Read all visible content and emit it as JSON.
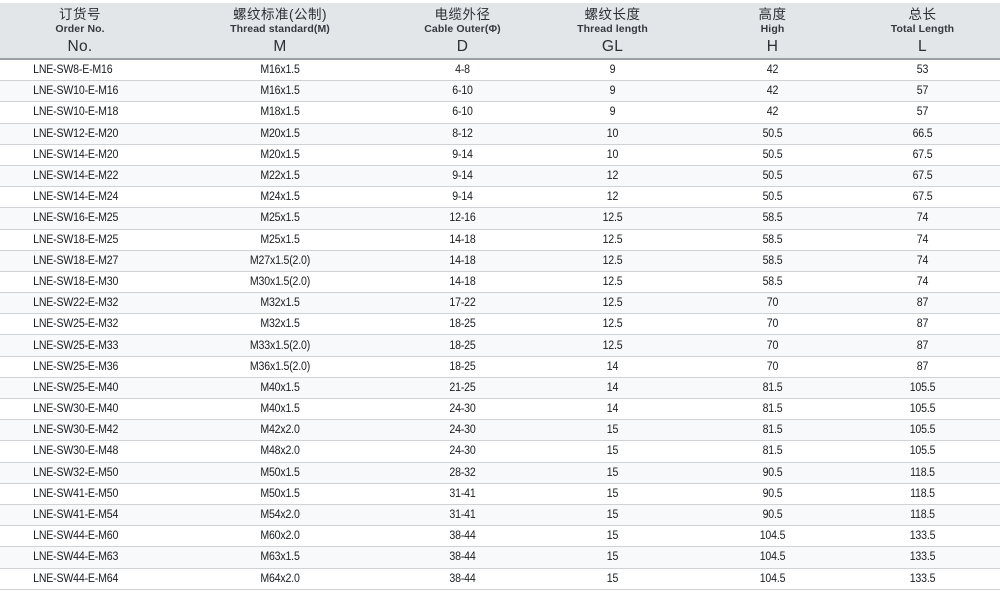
{
  "colors": {
    "header_bg": "#e3e6e9",
    "header_border": "#9aa0a5",
    "row_separator": "#cfd3d5",
    "row_stripe": "#f8f9fa",
    "text": "#1a1d20"
  },
  "table": {
    "columns": [
      {
        "zh": "订货号",
        "en": "Order No.",
        "symbol": "No."
      },
      {
        "zh": "螺纹标准(公制)",
        "en": "Thread standard(M)",
        "symbol": "M"
      },
      {
        "zh": "电缆外径",
        "en": "Cable Outer(Φ)",
        "symbol": "D"
      },
      {
        "zh": "螺纹长度",
        "en": "Thread length",
        "symbol": "GL"
      },
      {
        "zh": "高度",
        "en": "High",
        "symbol": "H"
      },
      {
        "zh": "总长",
        "en": "Total Length",
        "symbol": "L"
      }
    ],
    "rows": [
      [
        "LNE-SW8-E-M16",
        "M16x1.5",
        "4-8",
        "9",
        "42",
        "53"
      ],
      [
        "LNE-SW10-E-M16",
        "M16x1.5",
        "6-10",
        "9",
        "42",
        "57"
      ],
      [
        "LNE-SW10-E-M18",
        "M18x1.5",
        "6-10",
        "9",
        "42",
        "57"
      ],
      [
        "LNE-SW12-E-M20",
        "M20x1.5",
        "8-12",
        "10",
        "50.5",
        "66.5"
      ],
      [
        "LNE-SW14-E-M20",
        "M20x1.5",
        "9-14",
        "10",
        "50.5",
        "67.5"
      ],
      [
        "LNE-SW14-E-M22",
        "M22x1.5",
        "9-14",
        "12",
        "50.5",
        "67.5"
      ],
      [
        "LNE-SW14-E-M24",
        "M24x1.5",
        "9-14",
        "12",
        "50.5",
        "67.5"
      ],
      [
        "LNE-SW16-E-M25",
        "M25x1.5",
        "12-16",
        "12.5",
        "58.5",
        "74"
      ],
      [
        "LNE-SW18-E-M25",
        "M25x1.5",
        "14-18",
        "12.5",
        "58.5",
        "74"
      ],
      [
        "LNE-SW18-E-M27",
        "M27x1.5(2.0)",
        "14-18",
        "12.5",
        "58.5",
        "74"
      ],
      [
        "LNE-SW18-E-M30",
        "M30x1.5(2.0)",
        "14-18",
        "12.5",
        "58.5",
        "74"
      ],
      [
        "LNE-SW22-E-M32",
        "M32x1.5",
        "17-22",
        "12.5",
        "70",
        "87"
      ],
      [
        "LNE-SW25-E-M32",
        "M32x1.5",
        "18-25",
        "12.5",
        "70",
        "87"
      ],
      [
        "LNE-SW25-E-M33",
        "M33x1.5(2.0)",
        "18-25",
        "12.5",
        "70",
        "87"
      ],
      [
        "LNE-SW25-E-M36",
        "M36x1.5(2.0)",
        "18-25",
        "14",
        "70",
        "87"
      ],
      [
        "LNE-SW25-E-M40",
        "M40x1.5",
        "21-25",
        "14",
        "81.5",
        "105.5"
      ],
      [
        "LNE-SW30-E-M40",
        "M40x1.5",
        "24-30",
        "14",
        "81.5",
        "105.5"
      ],
      [
        "LNE-SW30-E-M42",
        "M42x2.0",
        "24-30",
        "15",
        "81.5",
        "105.5"
      ],
      [
        "LNE-SW30-E-M48",
        "M48x2.0",
        "24-30",
        "15",
        "81.5",
        "105.5"
      ],
      [
        "LNE-SW32-E-M50",
        "M50x1.5",
        "28-32",
        "15",
        "90.5",
        "118.5"
      ],
      [
        "LNE-SW41-E-M50",
        "M50x1.5",
        "31-41",
        "15",
        "90.5",
        "118.5"
      ],
      [
        "LNE-SW41-E-M54",
        "M54x2.0",
        "31-41",
        "15",
        "90.5",
        "118.5"
      ],
      [
        "LNE-SW44-E-M60",
        "M60x2.0",
        "38-44",
        "15",
        "104.5",
        "133.5"
      ],
      [
        "LNE-SW44-E-M63",
        "M63x1.5",
        "38-44",
        "15",
        "104.5",
        "133.5"
      ],
      [
        "LNE-SW44-E-M64",
        "M64x2.0",
        "38-44",
        "15",
        "104.5",
        "133.5"
      ]
    ]
  }
}
